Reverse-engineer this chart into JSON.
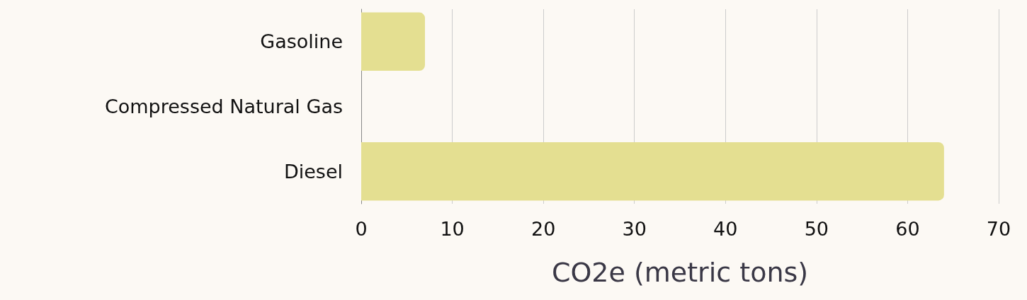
{
  "chart_data": {
    "type": "bar",
    "orientation": "horizontal",
    "xlabel": "CO2e (metric tons)",
    "categories": [
      "Gasoline",
      "Compressed Natural Gas",
      "Diesel"
    ],
    "values": [
      7,
      0,
      64
    ],
    "color": "#e4df91",
    "xlim": [
      0,
      70
    ],
    "xticks": [
      0,
      10,
      20,
      30,
      40,
      50,
      60,
      70
    ],
    "grid": "x"
  }
}
